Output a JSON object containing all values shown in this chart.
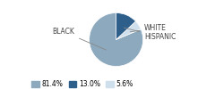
{
  "labels": [
    "BLACK",
    "WHITE",
    "HISPANIC"
  ],
  "values": [
    81.4,
    5.6,
    13.0
  ],
  "colors": [
    "#8da9be",
    "#cfe0ec",
    "#2d5f8a"
  ],
  "legend_labels": [
    "81.4%",
    "13.0%",
    "5.6%"
  ],
  "legend_colors": [
    "#8da9be",
    "#2d5f8a",
    "#cfe0ec"
  ],
  "startangle": 90,
  "figsize": [
    2.4,
    1.0
  ],
  "dpi": 100
}
